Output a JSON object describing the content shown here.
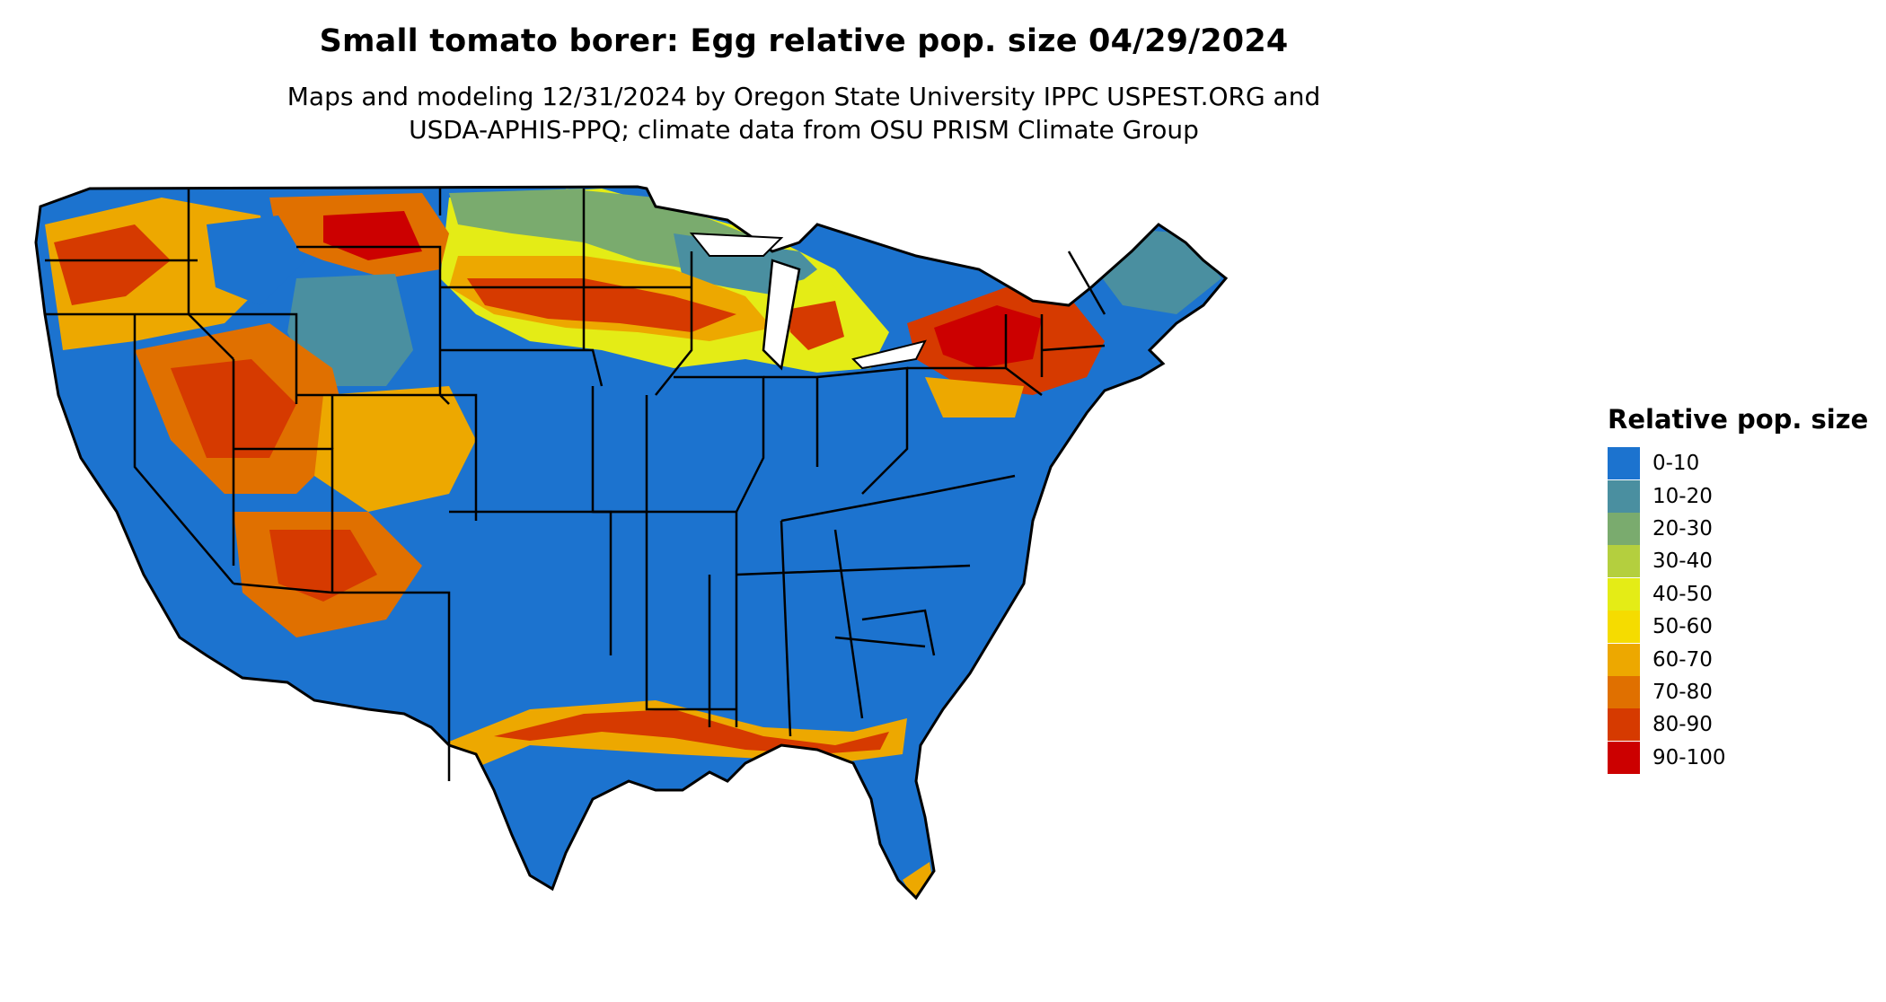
{
  "map": {
    "title": "Small tomato borer: Egg relative pop. size 04/29/2024",
    "subtitle_line1": "Maps and modeling 12/31/2024 by Oregon State University IPPC USPEST.ORG and",
    "subtitle_line2": "USDA-APHIS-PPQ; climate data from OSU PRISM Climate Group",
    "region": "Contiguous United States",
    "background_color": "#1a73d0"
  },
  "legend": {
    "title": "Relative pop. size",
    "items": [
      {
        "label": "0-10",
        "color": "#1c73cf"
      },
      {
        "label": "10-20",
        "color": "#4a8fa0"
      },
      {
        "label": "20-30",
        "color": "#7aab6e"
      },
      {
        "label": "30-40",
        "color": "#b4cf3e"
      },
      {
        "label": "40-50",
        "color": "#e4ec16"
      },
      {
        "label": "50-60",
        "color": "#f5dc00"
      },
      {
        "label": "60-70",
        "color": "#eda800"
      },
      {
        "label": "70-80",
        "color": "#e07000"
      },
      {
        "label": "80-90",
        "color": "#d63a00"
      },
      {
        "label": "90-100",
        "color": "#cc0000"
      }
    ]
  }
}
